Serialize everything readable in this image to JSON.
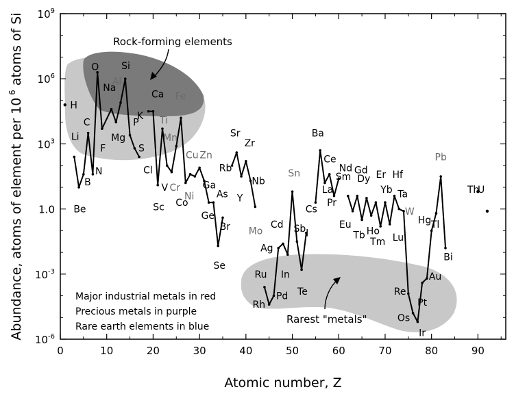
{
  "chart_data": {
    "type": "line",
    "xlabel": "Atomic number, Z",
    "ylabel": "Abundance, atoms of element per 10",
    "ylabel_sup": "6",
    "ylabel_tail": " atoms of Si",
    "xlim": [
      0,
      96
    ],
    "ylim_log10": [
      -6,
      9
    ],
    "y_scale": "log",
    "grid": false,
    "x_ticks": [
      0,
      10,
      20,
      30,
      40,
      50,
      60,
      70,
      80,
      90
    ],
    "y_ticks": [
      {
        "exp": 9,
        "base": "10",
        "sup": "9"
      },
      {
        "exp": 6,
        "base": "10",
        "sup": "6"
      },
      {
        "exp": 3,
        "base": "10",
        "sup": "3"
      },
      {
        "exp": 0,
        "base": "1.0",
        "sup": ""
      },
      {
        "exp": -3,
        "base": "10",
        "sup": "-3"
      },
      {
        "exp": -6,
        "base": "10",
        "sup": "-6"
      }
    ],
    "series": [
      {
        "values": [
          {
            "z": 3,
            "log": 2.4
          },
          {
            "z": 4,
            "log": 1.0
          },
          {
            "z": 5,
            "log": 1.6
          },
          {
            "z": 6,
            "log": 3.5
          },
          {
            "z": 7,
            "log": 1.6
          },
          {
            "z": 8,
            "log": 6.3
          },
          {
            "z": 9,
            "log": 3.7
          },
          {
            "z": 11,
            "log": 4.6
          },
          {
            "z": 12,
            "log": 4.0
          },
          {
            "z": 13,
            "log": 4.9
          },
          {
            "z": 14,
            "log": 6.0
          },
          {
            "z": 15,
            "log": 3.4
          },
          {
            "z": 16,
            "log": 2.8
          },
          {
            "z": 17,
            "log": 2.4
          }
        ]
      },
      {
        "values": [
          {
            "z": 19,
            "log": 4.5
          },
          {
            "z": 20,
            "log": 4.5
          },
          {
            "z": 21,
            "log": 1.1
          },
          {
            "z": 22,
            "log": 3.7
          },
          {
            "z": 23,
            "log": 2.0
          },
          {
            "z": 24,
            "log": 1.7
          },
          {
            "z": 25,
            "log": 2.9
          },
          {
            "z": 26,
            "log": 4.2
          },
          {
            "z": 27,
            "log": 1.2
          },
          {
            "z": 28,
            "log": 1.6
          },
          {
            "z": 29,
            "log": 1.5
          },
          {
            "z": 30,
            "log": 1.9
          },
          {
            "z": 31,
            "log": 1.3
          },
          {
            "z": 32,
            "log": 0.3
          },
          {
            "z": 33,
            "log": 0.3
          },
          {
            "z": 34,
            "log": -1.7
          },
          {
            "z": 35,
            "log": -0.4
          }
        ]
      },
      {
        "values": [
          {
            "z": 37,
            "log": 2.0
          },
          {
            "z": 38,
            "log": 2.6
          },
          {
            "z": 39,
            "log": 1.5
          },
          {
            "z": 40,
            "log": 2.2
          },
          {
            "z": 41,
            "log": 1.3
          },
          {
            "z": 42,
            "log": 0.1
          }
        ]
      },
      {
        "values": [
          {
            "z": 44,
            "log": -3.6
          },
          {
            "z": 45,
            "log": -4.4
          },
          {
            "z": 46,
            "log": -4.0
          },
          {
            "z": 47,
            "log": -1.8
          },
          {
            "z": 48,
            "log": -1.6
          },
          {
            "z": 49,
            "log": -2.1
          },
          {
            "z": 50,
            "log": 0.8
          },
          {
            "z": 51,
            "log": -1.5
          },
          {
            "z": 52,
            "log": -2.8
          },
          {
            "z": 53,
            "log": -1.1
          }
        ]
      },
      {
        "values": [
          {
            "z": 55,
            "log": 0.3
          },
          {
            "z": 56,
            "log": 2.7
          },
          {
            "z": 57,
            "log": 1.2
          },
          {
            "z": 58,
            "log": 1.6
          },
          {
            "z": 59,
            "log": 0.6
          },
          {
            "z": 60,
            "log": 1.4
          }
        ]
      },
      {
        "values": [
          {
            "z": 62,
            "log": 0.6
          },
          {
            "z": 63,
            "log": -0.1
          },
          {
            "z": 64,
            "log": 0.6
          },
          {
            "z": 65,
            "log": -0.5
          },
          {
            "z": 66,
            "log": 0.5
          },
          {
            "z": 67,
            "log": -0.3
          },
          {
            "z": 68,
            "log": 0.3
          },
          {
            "z": 69,
            "log": -0.8
          },
          {
            "z": 70,
            "log": 0.3
          },
          {
            "z": 71,
            "log": -0.7
          },
          {
            "z": 72,
            "log": 0.6
          },
          {
            "z": 73,
            "log": 0.0
          },
          {
            "z": 74,
            "log": -0.1
          },
          {
            "z": 75,
            "log": -3.9
          },
          {
            "z": 76,
            "log": -4.8
          },
          {
            "z": 77,
            "log": -5.2
          },
          {
            "z": 78,
            "log": -3.4
          },
          {
            "z": 79,
            "log": -3.2
          },
          {
            "z": 80,
            "log": -1.0
          },
          {
            "z": 81,
            "log": -0.2
          },
          {
            "z": 82,
            "log": 1.5
          },
          {
            "z": 83,
            "log": -1.8
          }
        ]
      }
    ],
    "standalone_points": [
      {
        "z": 1,
        "log": 4.8
      },
      {
        "z": 90,
        "log": 0.8
      },
      {
        "z": 92,
        "log": -0.1
      }
    ],
    "colors": {
      "axis": "#000000",
      "line": "#000000",
      "rock_region_dark": "#7a7a7a",
      "rock_region_light": "#c8c8c8",
      "rarest_region": "#c8c8c8",
      "highlighted_element": "#6b6b6b"
    },
    "element_labels": [
      {
        "symbol": "H",
        "z": 1,
        "log": 4.8,
        "dz": 1.9,
        "dlog": 0.0
      },
      {
        "symbol": "Li",
        "z": 3,
        "log": 2.4,
        "dz": 0.2,
        "dlog": 0.95
      },
      {
        "symbol": "Be",
        "z": 4,
        "log": 1.0,
        "dz": 0.2,
        "dlog": -1.0
      },
      {
        "symbol": "B",
        "z": 5,
        "log": 1.6,
        "dz": 0.9,
        "dlog": -0.35
      },
      {
        "symbol": "C",
        "z": 6,
        "log": 3.5,
        "dz": -0.3,
        "dlog": 0.5
      },
      {
        "symbol": "N",
        "z": 7,
        "log": 1.6,
        "dz": 1.3,
        "dlog": 0.15
      },
      {
        "symbol": "O",
        "z": 8,
        "log": 6.3,
        "dz": -0.5,
        "dlog": 0.25
      },
      {
        "symbol": "F",
        "z": 9,
        "log": 3.7,
        "dz": 0.2,
        "dlog": -0.9
      },
      {
        "symbol": "Na",
        "z": 11,
        "log": 4.6,
        "dz": -0.4,
        "dlog": 1.0
      },
      {
        "symbol": "Mg",
        "z": 12,
        "log": 4.0,
        "dz": 0.5,
        "dlog": -0.7
      },
      {
        "symbol": "Al",
        "z": 13,
        "log": 4.9,
        "dz": -0.8,
        "dlog": 1.0,
        "highlight": true
      },
      {
        "symbol": "Si",
        "z": 14,
        "log": 6.0,
        "dz": 0.1,
        "dlog": 0.6
      },
      {
        "symbol": "P",
        "z": 15,
        "log": 3.4,
        "dz": 1.3,
        "dlog": 0.6
      },
      {
        "symbol": "S",
        "z": 16,
        "log": 2.8,
        "dz": 1.5,
        "dlog": 0.0
      },
      {
        "symbol": "Cl",
        "z": 17,
        "log": 2.4,
        "dz": 1.9,
        "dlog": -0.6
      },
      {
        "symbol": "K",
        "z": 19,
        "log": 4.5,
        "dz": -1.8,
        "dlog": -0.2
      },
      {
        "symbol": "Ca",
        "z": 20,
        "log": 4.5,
        "dz": 1.0,
        "dlog": 0.8
      },
      {
        "symbol": "Sc",
        "z": 21,
        "log": 1.1,
        "dz": 0.2,
        "dlog": -1.0
      },
      {
        "symbol": "Ti",
        "z": 22,
        "log": 3.7,
        "dz": 0.3,
        "dlog": 0.4,
        "highlight": true
      },
      {
        "symbol": "V",
        "z": 23,
        "log": 2.0,
        "dz": -0.5,
        "dlog": -1.0
      },
      {
        "symbol": "Cr",
        "z": 24,
        "log": 1.7,
        "dz": 0.7,
        "dlog": -0.7,
        "highlight": true
      },
      {
        "symbol": "Mn",
        "z": 25,
        "log": 2.9,
        "dz": -1.3,
        "dlog": 0.4,
        "highlight": true
      },
      {
        "symbol": "Fe",
        "z": 26,
        "log": 4.2,
        "dz": -0.1,
        "dlog": 1.0,
        "highlight": true
      },
      {
        "symbol": "Co",
        "z": 27,
        "log": 1.2,
        "dz": -0.8,
        "dlog": -0.9
      },
      {
        "symbol": "Ni",
        "z": 28,
        "log": 1.6,
        "dz": -0.2,
        "dlog": -1.0,
        "highlight": true
      },
      {
        "symbol": "Cu",
        "z": 29,
        "log": 1.5,
        "dz": -0.6,
        "dlog": 1.0,
        "highlight": true
      },
      {
        "symbol": "Zn",
        "z": 30,
        "log": 1.9,
        "dz": 1.4,
        "dlog": 0.6,
        "highlight": true
      },
      {
        "symbol": "Ga",
        "z": 31,
        "log": 1.3,
        "dz": 1.1,
        "dlog": -0.2
      },
      {
        "symbol": "Ge",
        "z": 32,
        "log": 0.3,
        "dz": -0.2,
        "dlog": -0.6
      },
      {
        "symbol": "As",
        "z": 33,
        "log": 0.3,
        "dz": 1.9,
        "dlog": 0.4
      },
      {
        "symbol": "Se",
        "z": 34,
        "log": -1.7,
        "dz": 0.3,
        "dlog": -0.9
      },
      {
        "symbol": "Br",
        "z": 35,
        "log": -0.4,
        "dz": 0.5,
        "dlog": -0.4
      },
      {
        "symbol": "Rb",
        "z": 37,
        "log": 2.0,
        "dz": -1.4,
        "dlog": -0.1
      },
      {
        "symbol": "Sr",
        "z": 38,
        "log": 2.6,
        "dz": -0.3,
        "dlog": 0.9
      },
      {
        "symbol": "Y",
        "z": 39,
        "log": 1.5,
        "dz": -0.3,
        "dlog": -1.0
      },
      {
        "symbol": "Zr",
        "z": 40,
        "log": 2.2,
        "dz": 0.8,
        "dlog": 0.85
      },
      {
        "symbol": "Nb",
        "z": 41,
        "log": 1.3,
        "dz": 1.7,
        "dlog": 0.0
      },
      {
        "symbol": "Mo",
        "z": 42,
        "log": 0.1,
        "dz": 0.1,
        "dlog": -1.1,
        "highlight": true
      },
      {
        "symbol": "Ru",
        "z": 44,
        "log": -3.6,
        "dz": -0.8,
        "dlog": 0.6
      },
      {
        "symbol": "Rh",
        "z": 45,
        "log": -4.4,
        "dz": -2.2,
        "dlog": 0.0
      },
      {
        "symbol": "Pd",
        "z": 46,
        "log": -4.0,
        "dz": 1.8,
        "dlog": 0.0
      },
      {
        "symbol": "Ag",
        "z": 47,
        "log": -1.8,
        "dz": -2.5,
        "dlog": 0.0
      },
      {
        "symbol": "Cd",
        "z": 48,
        "log": -1.6,
        "dz": -1.3,
        "dlog": 0.9
      },
      {
        "symbol": "In",
        "z": 49,
        "log": -2.1,
        "dz": -0.5,
        "dlog": -0.9
      },
      {
        "symbol": "Sn",
        "z": 50,
        "log": 0.8,
        "dz": 0.4,
        "dlog": 0.85,
        "highlight": true
      },
      {
        "symbol": "Sb",
        "z": 51,
        "log": -1.5,
        "dz": 0.6,
        "dlog": 0.6
      },
      {
        "symbol": "Te",
        "z": 52,
        "log": -2.8,
        "dz": 0.2,
        "dlog": -1.0
      },
      {
        "symbol": "I",
        "z": 53,
        "log": -1.1,
        "dz": 0.2,
        "dlog": 0.0
      },
      {
        "symbol": "Cs",
        "z": 55,
        "log": 0.3,
        "dz": -0.9,
        "dlog": -0.3
      },
      {
        "symbol": "Ba",
        "z": 56,
        "log": 2.7,
        "dz": -0.5,
        "dlog": 0.8
      },
      {
        "symbol": "La",
        "z": 57,
        "log": 1.2,
        "dz": 0.6,
        "dlog": -0.3
      },
      {
        "symbol": "Ce",
        "z": 58,
        "log": 1.6,
        "dz": 0.1,
        "dlog": 0.7
      },
      {
        "symbol": "Pr",
        "z": 59,
        "log": 0.6,
        "dz": -0.5,
        "dlog": -0.3
      },
      {
        "symbol": "Nd",
        "z": 60,
        "log": 1.4,
        "dz": 1.5,
        "dlog": 0.5
      },
      {
        "symbol": "Sm",
        "z": 62,
        "log": 0.6,
        "dz": -1.0,
        "dlog": 0.9
      },
      {
        "symbol": "Eu",
        "z": 63,
        "log": -0.1,
        "dz": -1.6,
        "dlog": -0.6
      },
      {
        "symbol": "Gd",
        "z": 64,
        "log": 0.6,
        "dz": 0.8,
        "dlog": 1.2
      },
      {
        "symbol": "Tb",
        "z": 65,
        "log": -0.5,
        "dz": -0.6,
        "dlog": -0.7
      },
      {
        "symbol": "Dy",
        "z": 66,
        "log": 0.5,
        "dz": -0.6,
        "dlog": 0.9
      },
      {
        "symbol": "Ho",
        "z": 67,
        "log": -0.3,
        "dz": 0.4,
        "dlog": -0.7
      },
      {
        "symbol": "Er",
        "z": 68,
        "log": 0.3,
        "dz": 1.1,
        "dlog": 1.3
      },
      {
        "symbol": "Tm",
        "z": 69,
        "log": -0.8,
        "dz": -0.6,
        "dlog": -0.7
      },
      {
        "symbol": "Yb",
        "z": 70,
        "log": 0.3,
        "dz": 0.3,
        "dlog": 0.6
      },
      {
        "symbol": "Lu",
        "z": 71,
        "log": -0.7,
        "dz": 1.8,
        "dlog": -0.6
      },
      {
        "symbol": "Hf",
        "z": 72,
        "log": 0.6,
        "dz": 0.7,
        "dlog": 1.0
      },
      {
        "symbol": "Ta",
        "z": 73,
        "log": 0.0,
        "dz": 0.8,
        "dlog": 0.7
      },
      {
        "symbol": "W",
        "z": 74,
        "log": -0.1,
        "dz": 1.3,
        "dlog": 0.0,
        "highlight": true
      },
      {
        "symbol": "Re",
        "z": 75,
        "log": -3.9,
        "dz": -1.8,
        "dlog": 0.1
      },
      {
        "symbol": "Os",
        "z": 76,
        "log": -4.8,
        "dz": -2.0,
        "dlog": -0.2
      },
      {
        "symbol": "Ir",
        "z": 77,
        "log": -5.2,
        "dz": 1.0,
        "dlog": -0.5
      },
      {
        "symbol": "Pt",
        "z": 78,
        "log": -3.4,
        "dz": 0.0,
        "dlog": -0.9
      },
      {
        "symbol": "Au",
        "z": 79,
        "log": -3.2,
        "dz": 1.8,
        "dlog": 0.1
      },
      {
        "symbol": "Hg",
        "z": 80,
        "log": -1.0,
        "dz": -1.5,
        "dlog": 0.5
      },
      {
        "symbol": "Tl",
        "z": 81,
        "log": -0.2,
        "dz": -0.2,
        "dlog": -0.5
      },
      {
        "symbol": "Pb",
        "z": 82,
        "log": 1.5,
        "dz": 0.0,
        "dlog": 0.9,
        "highlight": true
      },
      {
        "symbol": "Bi",
        "z": 83,
        "log": -1.8,
        "dz": 0.6,
        "dlog": -0.4
      },
      {
        "symbol": "Th",
        "z": 90,
        "log": 0.8,
        "dz": -1.0,
        "dlog": 0.1
      },
      {
        "symbol": "U",
        "z": 92,
        "log": -0.1,
        "dz": -1.3,
        "dlog": 1.0
      }
    ],
    "annotations": {
      "rock_forming": "Rock-forming elements",
      "rarest_metals": "Rarest \"metals\"",
      "legend_lines": [
        "Major industrial metals in red",
        "Precious metals in purple",
        "Rare earth elements in blue"
      ]
    }
  }
}
